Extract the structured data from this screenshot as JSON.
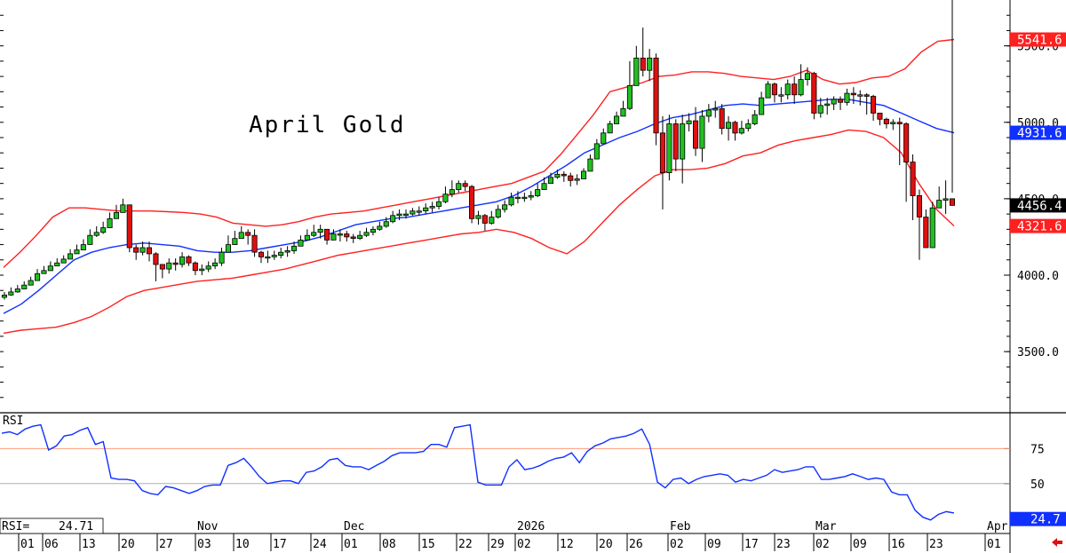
{
  "chart_data": {
    "type": "candlestick",
    "title": "April Gold",
    "price_panel": {
      "ylim": [
        3100,
        5800
      ],
      "y_ticks": [
        "3500.0",
        "4000.0",
        "4500.0",
        "5000.0",
        "5500.0"
      ],
      "y_tick_values": [
        3500,
        4000,
        4500,
        5000,
        5500
      ],
      "value_tags": [
        {
          "label": "5541.6",
          "value": 5541.6,
          "series": "Upper Band",
          "color": "#ff2020"
        },
        {
          "label": "4931.6",
          "value": 4931.6,
          "series": "Middle Band",
          "color": "#1030ff"
        },
        {
          "label": "4456.4",
          "value": 4456.4,
          "series": "Close",
          "color": "#000000"
        },
        {
          "label": "4321.6",
          "value": 4321.6,
          "series": "Lower Band",
          "color": "#ff2020"
        }
      ],
      "closes": [
        3870,
        3890,
        3910,
        3935,
        3965,
        4010,
        4030,
        4060,
        4080,
        4105,
        4140,
        4165,
        4200,
        4260,
        4280,
        4310,
        4370,
        4410,
        4460,
        4180,
        4150,
        4180,
        4140,
        4070,
        4040,
        4080,
        4070,
        4120,
        4080,
        4030,
        4040,
        4060,
        4080,
        4150,
        4200,
        4240,
        4280,
        4260,
        4150,
        4120,
        4120,
        4130,
        4150,
        4160,
        4190,
        4230,
        4260,
        4280,
        4300,
        4230,
        4270,
        4270,
        4250,
        4240,
        4260,
        4280,
        4300,
        4320,
        4350,
        4390,
        4400,
        4400,
        4420,
        4420,
        4440,
        4450,
        4480,
        4530,
        4560,
        4600,
        4580,
        4370,
        4390,
        4340,
        4380,
        4430,
        4460,
        4510,
        4510,
        4510,
        4520,
        4560,
        4600,
        4640,
        4660,
        4650,
        4620,
        4630,
        4680,
        4760,
        4860,
        4930,
        4990,
        5040,
        5090,
        5240,
        5420,
        5340,
        5420,
        4930,
        4670,
        4990,
        4760,
        4990,
        5010,
        4830,
        5040,
        5080,
        5090,
        4960,
        5000,
        4930,
        4960,
        4990,
        5050,
        5160,
        5250,
        5180,
        5180,
        5250,
        5180,
        5280,
        5320,
        5060,
        5110,
        5120,
        5150,
        5130,
        5190,
        5180,
        5180,
        5170,
        5060,
        5020,
        4990,
        5000,
        4990,
        4740,
        4520,
        4380,
        4180,
        4440,
        4490,
        4500,
        4456.4
      ],
      "highs": [
        3890,
        3920,
        3935,
        3960,
        3990,
        4040,
        4060,
        4090,
        4110,
        4130,
        4170,
        4200,
        4235,
        4300,
        4320,
        4350,
        4410,
        4460,
        4500,
        4450,
        4200,
        4220,
        4220,
        4150,
        4070,
        4110,
        4110,
        4150,
        4130,
        4090,
        4070,
        4090,
        4110,
        4180,
        4260,
        4290,
        4320,
        4300,
        4300,
        4160,
        4160,
        4160,
        4180,
        4190,
        4220,
        4260,
        4300,
        4330,
        4330,
        4290,
        4300,
        4300,
        4290,
        4270,
        4290,
        4310,
        4320,
        4350,
        4380,
        4420,
        4430,
        4430,
        4440,
        4450,
        4470,
        4480,
        4510,
        4580,
        4620,
        4620,
        4620,
        4590,
        4420,
        4400,
        4420,
        4460,
        4490,
        4540,
        4550,
        4540,
        4550,
        4600,
        4640,
        4670,
        4690,
        4680,
        4670,
        4660,
        4700,
        4790,
        4890,
        4960,
        5010,
        5070,
        5140,
        5400,
        5500,
        5620,
        5480,
        5450,
        5040,
        5050,
        5020,
        5050,
        5060,
        5100,
        5080,
        5120,
        5140,
        5120,
        5040,
        5010,
        5010,
        5020,
        5080,
        5200,
        5270,
        5260,
        5230,
        5280,
        5300,
        5380,
        5360,
        5330,
        5160,
        5160,
        5170,
        5170,
        5220,
        5230,
        5210,
        5190,
        5180,
        5060,
        5030,
        5020,
        5030,
        5000,
        4790,
        4560,
        4430,
        4480,
        4580,
        4620,
        4540
      ],
      "lows": [
        3840,
        3865,
        3885,
        3910,
        3940,
        3980,
        4010,
        4040,
        4060,
        4080,
        4110,
        4140,
        4170,
        4230,
        4250,
        4270,
        4340,
        4370,
        4420,
        4150,
        4100,
        4130,
        4090,
        3960,
        3980,
        4010,
        4030,
        4050,
        4060,
        4000,
        4000,
        4020,
        4040,
        4060,
        4170,
        4200,
        4240,
        4200,
        4120,
        4080,
        4080,
        4100,
        4110,
        4120,
        4140,
        4190,
        4230,
        4250,
        4240,
        4200,
        4230,
        4220,
        4220,
        4210,
        4230,
        4250,
        4260,
        4290,
        4310,
        4340,
        4360,
        4370,
        4390,
        4390,
        4400,
        4410,
        4430,
        4470,
        4510,
        4540,
        4550,
        4340,
        4330,
        4290,
        4330,
        4370,
        4410,
        4450,
        4470,
        4480,
        4490,
        4510,
        4560,
        4600,
        4630,
        4610,
        4580,
        4590,
        4630,
        4700,
        4790,
        4860,
        4930,
        4990,
        5040,
        5080,
        5250,
        5300,
        5270,
        4850,
        4430,
        4620,
        4680,
        4600,
        4940,
        4780,
        4740,
        5000,
        5030,
        4920,
        4880,
        4880,
        4920,
        4940,
        4980,
        5080,
        5190,
        5130,
        5130,
        5150,
        5120,
        5170,
        5240,
        5020,
        5030,
        5050,
        5080,
        5080,
        5110,
        5120,
        5110,
        5050,
        5010,
        4980,
        4960,
        4950,
        4720,
        4480,
        4360,
        4100,
        4290,
        4300,
        4440,
        4400
      ],
      "upper_band": [
        4050,
        4150,
        4260,
        4380,
        4440,
        4440,
        4430,
        4420,
        4420,
        4420,
        4415,
        4410,
        4400,
        4380,
        4340,
        4330,
        4320,
        4330,
        4350,
        4380,
        4400,
        4410,
        4420,
        4440,
        4460,
        4480,
        4500,
        4520,
        4540,
        4560,
        4580,
        4600,
        4640,
        4680,
        4790,
        4920,
        5050,
        5200,
        5230,
        5260,
        5300,
        5310,
        5330,
        5330,
        5320,
        5300,
        5290,
        5280,
        5300,
        5340,
        5280,
        5250,
        5260,
        5290,
        5300,
        5350,
        5460,
        5530,
        5541.6
      ],
      "middle_band": [
        3750,
        3810,
        3900,
        4000,
        4100,
        4150,
        4180,
        4200,
        4210,
        4200,
        4190,
        4160,
        4150,
        4150,
        4160,
        4180,
        4200,
        4220,
        4250,
        4290,
        4330,
        4350,
        4370,
        4380,
        4400,
        4420,
        4440,
        4460,
        4480,
        4520,
        4580,
        4650,
        4720,
        4800,
        4850,
        4900,
        4940,
        4990,
        5030,
        5050,
        5080,
        5110,
        5120,
        5110,
        5120,
        5130,
        5140,
        5150,
        5150,
        5130,
        5110,
        5060,
        5010,
        4960,
        4931.6
      ],
      "lower_band": [
        3620,
        3640,
        3650,
        3660,
        3690,
        3730,
        3790,
        3860,
        3900,
        3920,
        3940,
        3960,
        3970,
        3980,
        4000,
        4020,
        4040,
        4070,
        4100,
        4130,
        4150,
        4170,
        4190,
        4210,
        4230,
        4250,
        4270,
        4280,
        4300,
        4280,
        4240,
        4180,
        4140,
        4220,
        4340,
        4460,
        4560,
        4650,
        4690,
        4690,
        4700,
        4730,
        4780,
        4800,
        4850,
        4880,
        4900,
        4920,
        4950,
        4940,
        4900,
        4800,
        4600,
        4430,
        4321.6
      ]
    },
    "rsi_panel": {
      "label": "RSI",
      "readout_label": "RSI=",
      "readout_value": "24.71",
      "ylim": [
        15,
        100
      ],
      "y_ticks": [
        "50",
        "75"
      ],
      "y_tick_values": [
        50,
        75
      ],
      "overbought": 75,
      "value_tag": {
        "label": "24.7",
        "value": 24.7,
        "color": "#1030ff"
      },
      "values": [
        86,
        87,
        85,
        89,
        91,
        92,
        74,
        77,
        84,
        85,
        88,
        90,
        78,
        80,
        54,
        53,
        53,
        52,
        45,
        43,
        42,
        48,
        47,
        45,
        43,
        45,
        48,
        49,
        49,
        63,
        65,
        68,
        62,
        55,
        50,
        51,
        52,
        52,
        50,
        58,
        59,
        62,
        67,
        68,
        63,
        62,
        62,
        60,
        63,
        66,
        70,
        72,
        72,
        72,
        73,
        78,
        78,
        76,
        90,
        91,
        92,
        51,
        49,
        49,
        49,
        62,
        67,
        60,
        61,
        63,
        66,
        68,
        69,
        72,
        65,
        73,
        77,
        79,
        82,
        83,
        84,
        86,
        89,
        78,
        51,
        47,
        53,
        54,
        50,
        53,
        55,
        56,
        57,
        56,
        51,
        53,
        52,
        54,
        56,
        60,
        58,
        59,
        60,
        62,
        62,
        53,
        53,
        54,
        55,
        57,
        55,
        53,
        54,
        53,
        44,
        42,
        42,
        31,
        26,
        24,
        28,
        30,
        29
      ]
    },
    "x_axis": {
      "date_labels": [
        "01",
        "06",
        "13",
        "20",
        "27",
        "03",
        "10",
        "17",
        "24",
        "01",
        "08",
        "15",
        "22",
        "29",
        "02",
        "12",
        "20",
        "26",
        "02",
        "09",
        "17",
        "23",
        "02",
        "09",
        "16",
        "23",
        "01"
      ],
      "date_values": [
        "Oct 01",
        "Oct 06",
        "Oct 13",
        "Oct 20",
        "Oct 27",
        "Nov 03",
        "Nov 10",
        "Nov 17",
        "Nov 24",
        "Dec 01",
        "Dec 08",
        "Dec 15",
        "Dec 22",
        "Dec 29",
        "Jan 02",
        "Jan 12",
        "Jan 20",
        "Jan 26",
        "Feb 02",
        "Feb 09",
        "Feb 17",
        "Feb 23",
        "Mar 02",
        "Mar 09",
        "Mar 16",
        "Mar 23",
        "Apr 01"
      ],
      "month_labels": [
        "Nov",
        "Dec",
        "2026",
        "Feb",
        "Mar",
        "Apr"
      ],
      "month_anchor_index": [
        5,
        9,
        14,
        18,
        22,
        26
      ]
    },
    "colors": {
      "up_candle": "#20c020",
      "down_candle": "#e01010",
      "bollinger_outer": "#ff2020",
      "bollinger_middle": "#1030ff",
      "rsi_line": "#1030ff",
      "overbought_line": "#ff9a7a",
      "grid_line": "#a0a0a0"
    },
    "grid": false
  }
}
